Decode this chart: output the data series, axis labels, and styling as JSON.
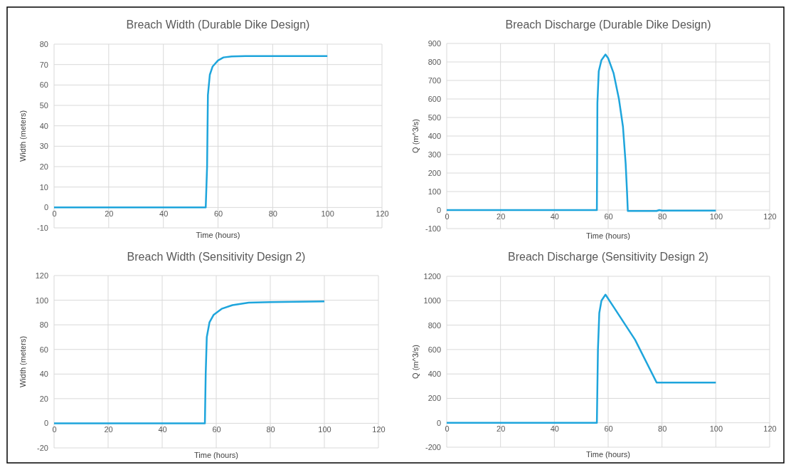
{
  "chart_data": [
    {
      "type": "line",
      "title": "Breach Width (Durable Dike Design)",
      "xlabel": "Time (hours)",
      "ylabel": "Width (meters)",
      "xlim": [
        0,
        120
      ],
      "xticks": [
        0,
        20,
        40,
        60,
        80,
        100,
        120
      ],
      "ylim": [
        -10,
        80
      ],
      "yticks": [
        -10,
        0,
        10,
        20,
        30,
        40,
        50,
        60,
        70,
        80
      ],
      "grid": true,
      "series": [
        {
          "color": "#1ea5dc",
          "x": [
            0,
            55.5,
            56,
            56.3,
            57,
            58,
            60,
            62,
            65,
            70,
            100
          ],
          "values": [
            0,
            0,
            20,
            55,
            65,
            69,
            72,
            73.5,
            74,
            74.2,
            74.2
          ]
        }
      ]
    },
    {
      "type": "line",
      "title": "Breach Discharge (Durable Dike Design)",
      "xlabel": "Time (hours)",
      "ylabel": "Q (m^3/s)",
      "xlim": [
        0,
        120
      ],
      "xticks": [
        0,
        20,
        40,
        60,
        80,
        100,
        120
      ],
      "ylim": [
        -100,
        900
      ],
      "yticks": [
        -100,
        0,
        100,
        200,
        300,
        400,
        500,
        600,
        700,
        800,
        900
      ],
      "grid": true,
      "series": [
        {
          "color": "#1ea5dc",
          "x": [
            0,
            55.8,
            56,
            56.5,
            57.5,
            59,
            60,
            62,
            64,
            65.5,
            66.5,
            67,
            67.3,
            78,
            79,
            80,
            100
          ],
          "values": [
            0,
            0,
            580,
            750,
            810,
            840,
            820,
            740,
            600,
            450,
            250,
            100,
            -5,
            -5,
            0,
            -3,
            -3
          ]
        }
      ]
    },
    {
      "type": "line",
      "title": "Breach Width (Sensitivity Design 2)",
      "xlabel": "Time (hours)",
      "ylabel": "Width (meters)",
      "xlim": [
        0,
        120
      ],
      "xticks": [
        0,
        20,
        40,
        60,
        80,
        100,
        120
      ],
      "ylim": [
        -20,
        120
      ],
      "yticks": [
        -20,
        0,
        20,
        40,
        60,
        80,
        100,
        120
      ],
      "grid": true,
      "series": [
        {
          "color": "#1ea5dc",
          "x": [
            0,
            55.8,
            56.1,
            56.5,
            57.5,
            59,
            62,
            66,
            72,
            80,
            100
          ],
          "values": [
            0,
            0,
            40,
            70,
            82,
            88,
            93,
            96,
            98,
            98.5,
            99
          ]
        }
      ]
    },
    {
      "type": "line",
      "title": "Breach Discharge (Sensitivity Design 2)",
      "xlabel": "Time (hours)",
      "ylabel": "Q (m^3/s)",
      "xlim": [
        0,
        120
      ],
      "xticks": [
        0,
        20,
        40,
        60,
        80,
        100,
        120
      ],
      "ylim": [
        -200,
        1200
      ],
      "yticks": [
        -200,
        0,
        200,
        400,
        600,
        800,
        1000,
        1200
      ],
      "grid": true,
      "series": [
        {
          "color": "#1ea5dc",
          "x": [
            0,
            55.8,
            56.2,
            56.7,
            57.5,
            59,
            62,
            70,
            78,
            100
          ],
          "values": [
            0,
            0,
            600,
            900,
            1000,
            1050,
            950,
            680,
            330,
            330
          ]
        }
      ]
    }
  ]
}
